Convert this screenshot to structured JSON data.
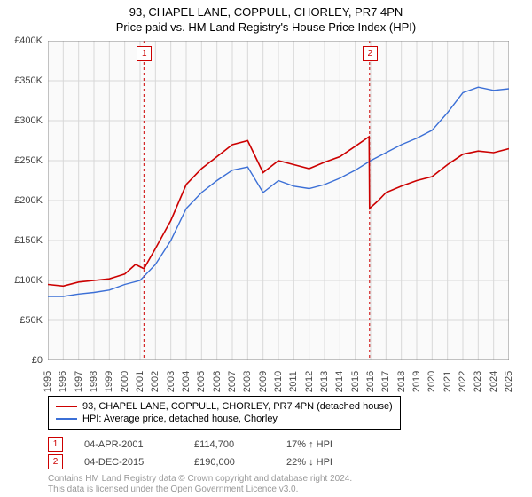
{
  "title": "93, CHAPEL LANE, COPPULL, CHORLEY, PR7 4PN",
  "subtitle": "Price paid vs. HM Land Registry's House Price Index (HPI)",
  "chart": {
    "type": "line",
    "background_color": "#fafafa",
    "grid_color": "#d8d8d8",
    "axis_color": "#888888",
    "ylim": [
      0,
      400
    ],
    "yticks": [
      0,
      50,
      100,
      150,
      200,
      250,
      300,
      350,
      400
    ],
    "ytick_labels": [
      "£0",
      "£50K",
      "£100K",
      "£150K",
      "£200K",
      "£250K",
      "£300K",
      "£350K",
      "£400K"
    ],
    "xlim": [
      1995,
      2025
    ],
    "xticks": [
      1995,
      1996,
      1997,
      1998,
      1999,
      2000,
      2001,
      2002,
      2003,
      2004,
      2005,
      2006,
      2007,
      2008,
      2009,
      2010,
      2011,
      2012,
      2013,
      2014,
      2015,
      2016,
      2017,
      2018,
      2019,
      2020,
      2021,
      2022,
      2023,
      2024,
      2025
    ],
    "title_fontsize": 13,
    "label_fontsize": 11,
    "series": [
      {
        "name": "93, CHAPEL LANE, COPPULL, CHORLEY, PR7 4PN (detached house)",
        "color": "#cc0000",
        "width": 1.6,
        "data": [
          [
            1995,
            95
          ],
          [
            1996,
            93
          ],
          [
            1997,
            98
          ],
          [
            1998,
            100
          ],
          [
            1999,
            102
          ],
          [
            2000,
            108
          ],
          [
            2000.7,
            120
          ],
          [
            2001.25,
            114.7
          ],
          [
            2002,
            140
          ],
          [
            2003,
            175
          ],
          [
            2004,
            220
          ],
          [
            2005,
            240
          ],
          [
            2006,
            255
          ],
          [
            2007,
            270
          ],
          [
            2008,
            275
          ],
          [
            2009,
            235
          ],
          [
            2010,
            250
          ],
          [
            2011,
            245
          ],
          [
            2012,
            240
          ],
          [
            2013,
            248
          ],
          [
            2014,
            255
          ],
          [
            2015,
            268
          ],
          [
            2015.9,
            280
          ],
          [
            2015.93,
            190
          ],
          [
            2016.5,
            200
          ],
          [
            2017,
            210
          ],
          [
            2018,
            218
          ],
          [
            2019,
            225
          ],
          [
            2020,
            230
          ],
          [
            2021,
            245
          ],
          [
            2022,
            258
          ],
          [
            2023,
            262
          ],
          [
            2024,
            260
          ],
          [
            2025,
            265
          ]
        ]
      },
      {
        "name": "HPI: Average price, detached house, Chorley",
        "color": "#3b6fd6",
        "width": 1.4,
        "data": [
          [
            1995,
            80
          ],
          [
            1996,
            80
          ],
          [
            1997,
            83
          ],
          [
            1998,
            85
          ],
          [
            1999,
            88
          ],
          [
            2000,
            95
          ],
          [
            2001,
            100
          ],
          [
            2002,
            120
          ],
          [
            2003,
            150
          ],
          [
            2004,
            190
          ],
          [
            2005,
            210
          ],
          [
            2006,
            225
          ],
          [
            2007,
            238
          ],
          [
            2008,
            242
          ],
          [
            2009,
            210
          ],
          [
            2010,
            225
          ],
          [
            2011,
            218
          ],
          [
            2012,
            215
          ],
          [
            2013,
            220
          ],
          [
            2014,
            228
          ],
          [
            2015,
            238
          ],
          [
            2016,
            250
          ],
          [
            2017,
            260
          ],
          [
            2018,
            270
          ],
          [
            2019,
            278
          ],
          [
            2020,
            288
          ],
          [
            2021,
            310
          ],
          [
            2022,
            335
          ],
          [
            2023,
            342
          ],
          [
            2024,
            338
          ],
          [
            2025,
            340
          ]
        ]
      }
    ],
    "markers": [
      {
        "n": "1",
        "x": 2001.25,
        "color": "#cc0000"
      },
      {
        "n": "2",
        "x": 2015.93,
        "color": "#cc0000"
      }
    ]
  },
  "legend": {
    "items": [
      {
        "color": "#cc0000",
        "label": "93, CHAPEL LANE, COPPULL, CHORLEY, PR7 4PN (detached house)"
      },
      {
        "color": "#3b6fd6",
        "label": "HPI: Average price, detached house, Chorley"
      }
    ]
  },
  "sales": [
    {
      "n": "1",
      "color": "#cc0000",
      "date": "04-APR-2001",
      "price": "£114,700",
      "delta": "17% ↑ HPI"
    },
    {
      "n": "2",
      "color": "#cc0000",
      "date": "04-DEC-2015",
      "price": "£190,000",
      "delta": "22% ↓ HPI"
    }
  ],
  "copyright_line1": "Contains HM Land Registry data © Crown copyright and database right 2024.",
  "copyright_line2": "This data is licensed under the Open Government Licence v3.0."
}
